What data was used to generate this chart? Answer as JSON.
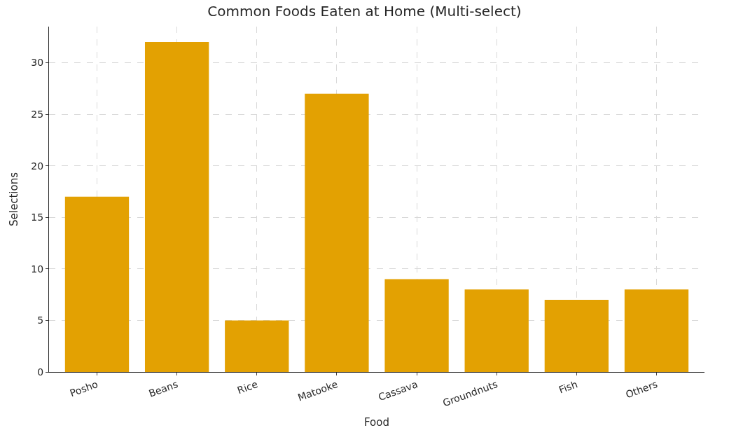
{
  "chart_data": {
    "type": "bar",
    "title": "Common Foods Eaten at Home (Multi-select)",
    "xlabel": "Food",
    "ylabel": "Selections",
    "categories": [
      "Posho",
      "Beans",
      "Rice",
      "Matooke",
      "Cassava",
      "Groundnuts",
      "Fish",
      "Others"
    ],
    "values": [
      17,
      32,
      5,
      27,
      9,
      8,
      7,
      8
    ],
    "color": "#e3a102",
    "ylim": [
      0,
      33.5
    ],
    "yticks": [
      0,
      5,
      10,
      15,
      20,
      25,
      30
    ],
    "grid": true
  }
}
